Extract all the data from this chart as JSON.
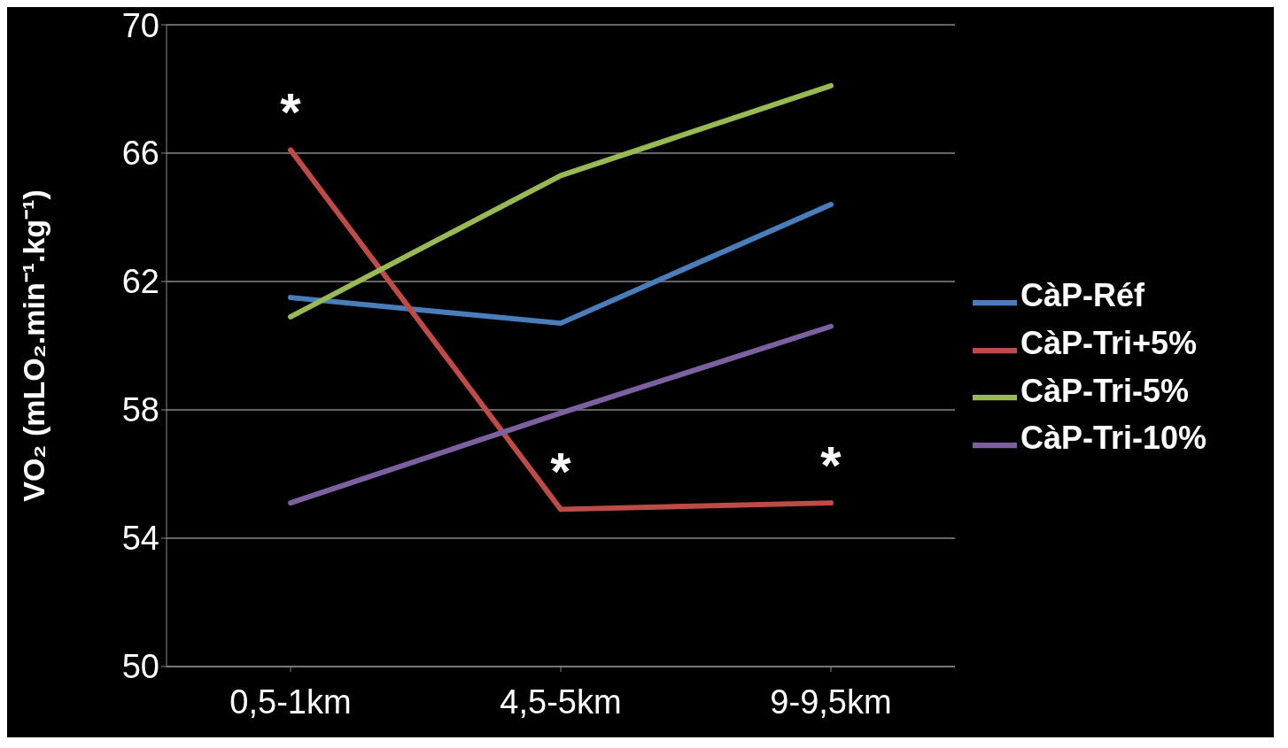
{
  "chart_data": {
    "type": "line",
    "ylabel": "VO₂ (mLO₂.min⁻¹.kg⁻¹)",
    "categories": [
      "0,5-1km",
      "4,5-5km",
      "9-9,5km"
    ],
    "series": [
      {
        "name": "CàP-Réf",
        "color": "#4a7ebb",
        "values": [
          61.5,
          60.7,
          64.4
        ]
      },
      {
        "name": "CàP-Tri+5%",
        "color": "#be4b48",
        "values": [
          66.1,
          54.9,
          55.1
        ]
      },
      {
        "name": "CàP-Tri-5%",
        "color": "#98b954",
        "values": [
          60.9,
          65.3,
          68.1
        ]
      },
      {
        "name": "CàP-Tri-10%",
        "color": "#7d60a0",
        "values": [
          55.1,
          57.9,
          60.6
        ]
      }
    ],
    "ylim": [
      50,
      70
    ],
    "yticks": [
      50,
      54,
      58,
      62,
      66,
      70
    ],
    "grid": "y",
    "legend": "right",
    "marker": "none",
    "line_style": "solid",
    "annotations": [
      {
        "text": "*",
        "x": "0,5-1km",
        "y": 66.1
      },
      {
        "text": "*",
        "x": "4,5-5km",
        "y": 54.9
      },
      {
        "text": "*",
        "x": "9-9,5km",
        "y": 55.1
      }
    ]
  }
}
